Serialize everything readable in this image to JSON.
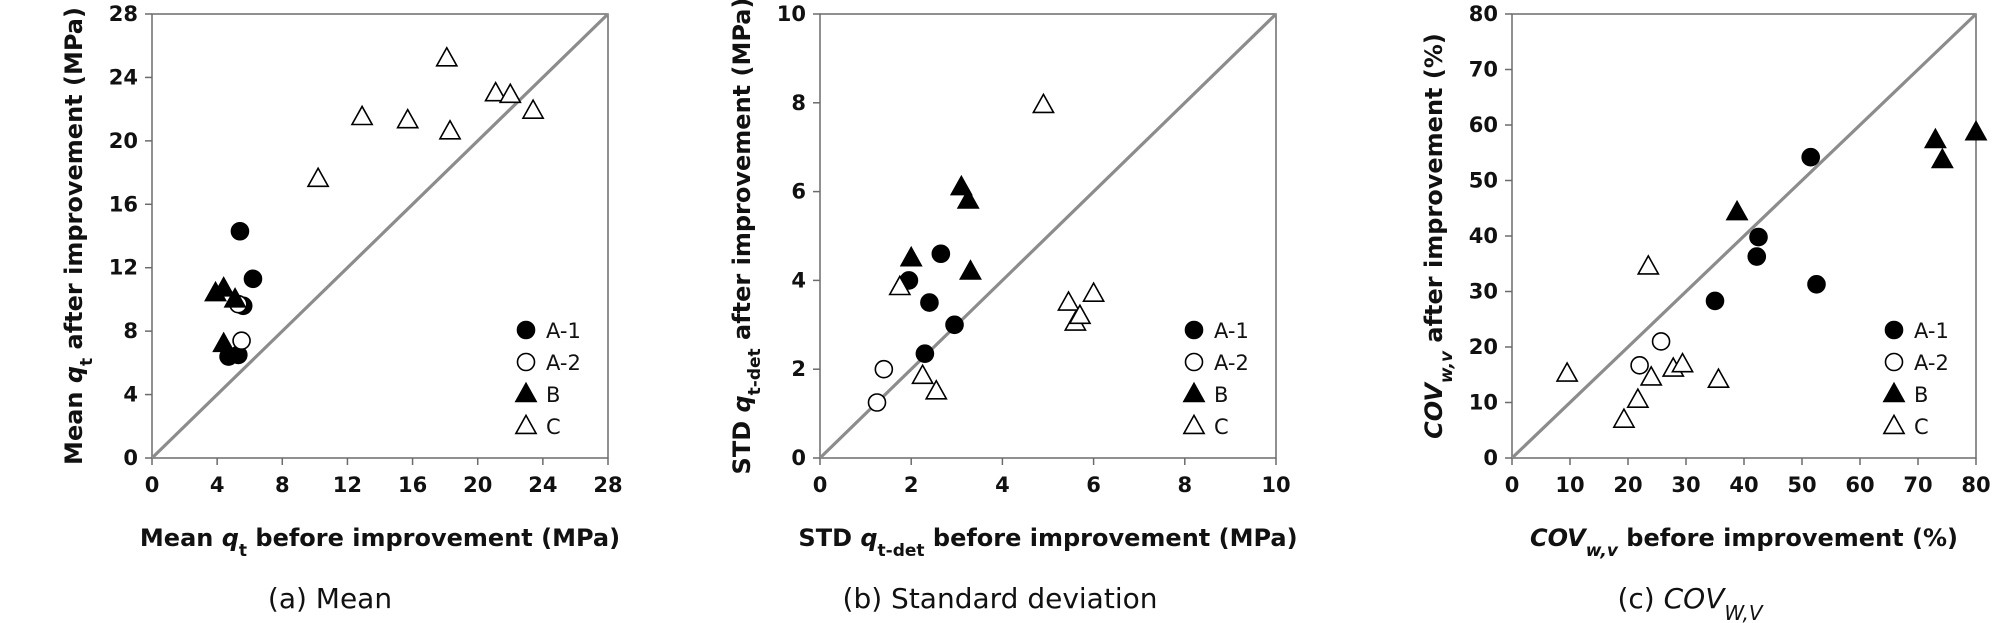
{
  "legend": [
    "A-1",
    "A-2",
    "B",
    "C"
  ],
  "chart_data": [
    {
      "type": "scatter",
      "caption_prefix": "(a)",
      "caption_text": "Mean",
      "xlabel": "Mean qt before improvement (MPa)",
      "ylabel": "Mean qt after improvement (MPa)",
      "xlim": [
        0,
        28
      ],
      "ylim": [
        0,
        28
      ],
      "xticks": [
        0,
        4,
        8,
        12,
        16,
        20,
        24,
        28
      ],
      "yticks": [
        0,
        4,
        8,
        12,
        16,
        20,
        24,
        28
      ],
      "reference_line": "y = x",
      "series": [
        {
          "name": "A-1",
          "points": [
            [
              5.4,
              14.3
            ],
            [
              6.2,
              11.3
            ],
            [
              5.6,
              9.6
            ],
            [
              4.7,
              6.4
            ],
            [
              5.3,
              6.5
            ]
          ]
        },
        {
          "name": "A-2",
          "points": [
            [
              5.3,
              9.7
            ],
            [
              5.5,
              7.4
            ]
          ]
        },
        {
          "name": "B",
          "points": [
            [
              3.9,
              10.4
            ],
            [
              4.4,
              10.7
            ],
            [
              5.1,
              10.0
            ],
            [
              4.4,
              7.2
            ]
          ]
        },
        {
          "name": "C",
          "points": [
            [
              10.2,
              17.6
            ],
            [
              12.9,
              21.5
            ],
            [
              15.7,
              21.3
            ],
            [
              18.1,
              25.2
            ],
            [
              18.3,
              20.6
            ],
            [
              21.1,
              23.0
            ],
            [
              22.0,
              22.9
            ],
            [
              23.4,
              21.9
            ]
          ]
        }
      ]
    },
    {
      "type": "scatter",
      "caption_prefix": "(b)",
      "caption_text": "Standard deviation",
      "xlabel": "STD qt-det before improvement (MPa)",
      "ylabel": "STD qt-det after improvement (MPa)",
      "xlim": [
        0,
        10
      ],
      "ylim": [
        0,
        10
      ],
      "xticks": [
        0,
        2,
        4,
        6,
        8,
        10
      ],
      "yticks": [
        0,
        2,
        4,
        6,
        8,
        10
      ],
      "reference_line": "y = x",
      "series": [
        {
          "name": "A-1",
          "points": [
            [
              1.95,
              4.0
            ],
            [
              2.65,
              4.6
            ],
            [
              2.4,
              3.5
            ],
            [
              2.95,
              3.0
            ],
            [
              2.3,
              2.35
            ]
          ]
        },
        {
          "name": "A-2",
          "points": [
            [
              1.4,
              2.0
            ],
            [
              1.25,
              1.25
            ]
          ]
        },
        {
          "name": "B",
          "points": [
            [
              2.0,
              4.5
            ],
            [
              3.1,
              6.1
            ],
            [
              3.25,
              5.8
            ],
            [
              3.3,
              4.2
            ]
          ]
        },
        {
          "name": "C",
          "points": [
            [
              4.9,
              7.95
            ],
            [
              1.75,
              3.85
            ],
            [
              2.25,
              1.85
            ],
            [
              2.55,
              1.5
            ],
            [
              5.45,
              3.5
            ],
            [
              5.6,
              3.05
            ],
            [
              5.7,
              3.2
            ],
            [
              6.0,
              3.7
            ]
          ]
        }
      ]
    },
    {
      "type": "scatter",
      "caption_prefix": "(c)",
      "caption_text": "COVW,V",
      "xlabel": "COVw,v before improvement (%)",
      "ylabel": "COVw,v after improvement (%)",
      "xlim": [
        0,
        80
      ],
      "ylim": [
        0,
        80
      ],
      "xticks": [
        0,
        10,
        20,
        30,
        40,
        50,
        60,
        70,
        80
      ],
      "yticks": [
        0,
        10,
        20,
        30,
        40,
        50,
        60,
        70,
        80
      ],
      "reference_line": "y = x",
      "series": [
        {
          "name": "A-1",
          "points": [
            [
              51.5,
              54.2
            ],
            [
              42.5,
              39.8
            ],
            [
              42.2,
              36.3
            ],
            [
              35.0,
              28.3
            ],
            [
              52.5,
              31.3
            ]
          ]
        },
        {
          "name": "A-2",
          "points": [
            [
              25.7,
              21.0
            ],
            [
              22.0,
              16.7
            ]
          ]
        },
        {
          "name": "B",
          "points": [
            [
              73.0,
              57.3
            ],
            [
              80.0,
              58.7
            ],
            [
              38.8,
              44.3
            ],
            [
              74.2,
              53.7
            ]
          ]
        },
        {
          "name": "C",
          "points": [
            [
              9.5,
              15.2
            ],
            [
              23.5,
              34.5
            ],
            [
              19.3,
              6.9
            ],
            [
              21.7,
              10.5
            ],
            [
              24.0,
              14.5
            ],
            [
              27.8,
              16.1
            ],
            [
              29.4,
              16.9
            ],
            [
              35.6,
              14.1
            ]
          ]
        }
      ]
    }
  ]
}
